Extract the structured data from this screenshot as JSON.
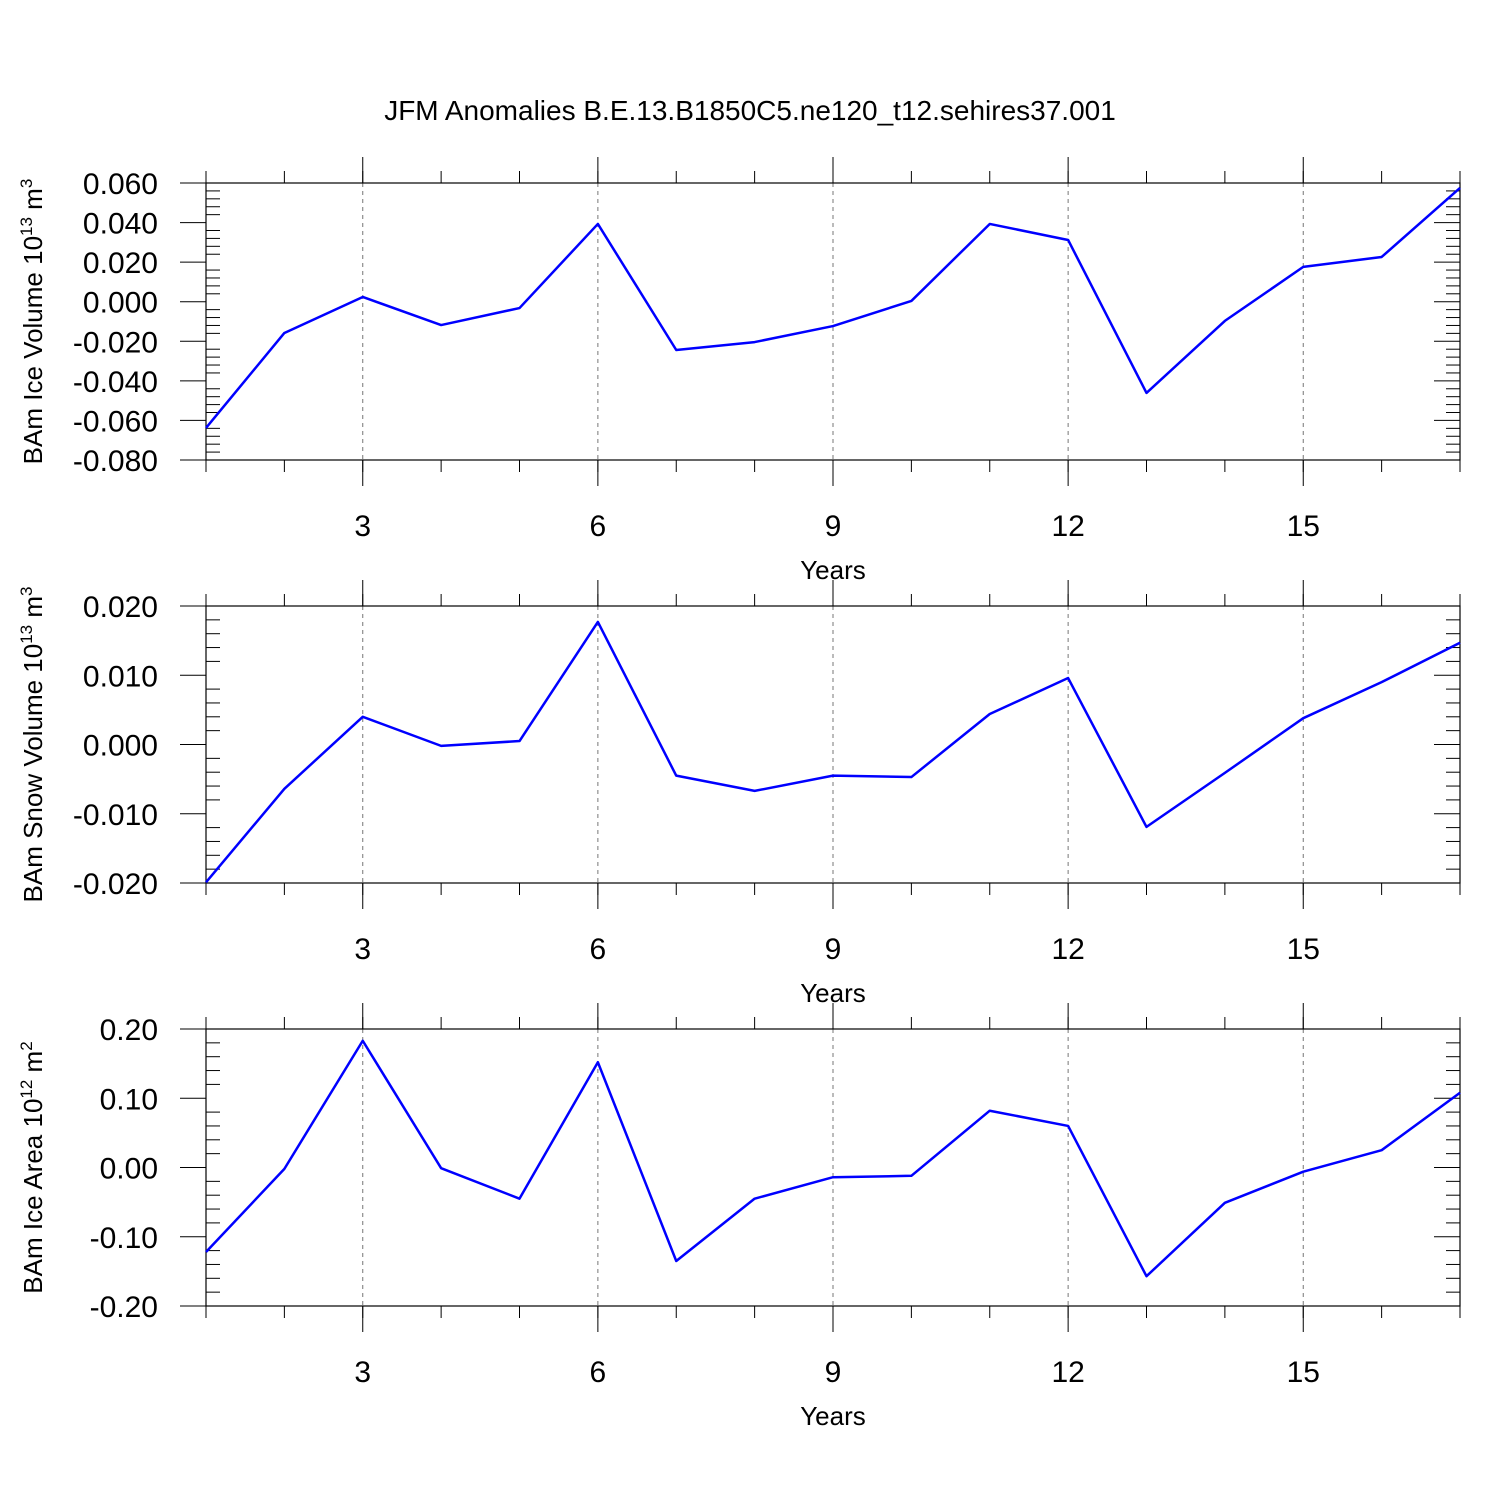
{
  "chart_data": [
    {
      "type": "line",
      "title": "JFM Anomalies B.E.13.B1850C5.ne120_t12.sehires37.001",
      "ylabel": {
        "text": "BAm Ice Volume 10",
        "exp": "13",
        "unit": " m",
        "unit_exp": "3"
      },
      "xlabel": "Years",
      "color": "#0000ff",
      "grid": true,
      "x": [
        1,
        2,
        3,
        4,
        5,
        6,
        7,
        8,
        9,
        10,
        11,
        12,
        13,
        14,
        15,
        16,
        17
      ],
      "values": [
        -0.0638,
        -0.0158,
        0.0024,
        -0.0118,
        -0.0032,
        0.0393,
        -0.0244,
        -0.0204,
        -0.0123,
        0.0004,
        0.0393,
        0.0312,
        -0.0461,
        -0.0097,
        0.0176,
        0.0226,
        0.0575
      ],
      "xlim": [
        1,
        17
      ],
      "xticks": [
        3,
        6,
        9,
        12,
        15
      ],
      "ylim": [
        -0.08,
        0.06
      ],
      "yticks": [
        {
          "value": -0.08,
          "label": "-0.080"
        },
        {
          "value": -0.06,
          "label": "-0.060"
        },
        {
          "value": -0.04,
          "label": "-0.040"
        },
        {
          "value": -0.02,
          "label": "-0.020"
        },
        {
          "value": 0,
          "label": "0.000"
        },
        {
          "value": 0.02,
          "label": "0.020"
        },
        {
          "value": 0.04,
          "label": "0.040"
        },
        {
          "value": 0.06,
          "label": "0.060"
        }
      ]
    },
    {
      "type": "line",
      "ylabel": {
        "text": "BAm Snow Volume 10",
        "exp": "13",
        "unit": " m",
        "unit_exp": "3"
      },
      "xlabel": "Years",
      "color": "#0000ff",
      "grid": true,
      "x": [
        1,
        2,
        3,
        4,
        5,
        6,
        7,
        8,
        9,
        10,
        11,
        12,
        13,
        14,
        15,
        16,
        17
      ],
      "values": [
        -0.0199,
        -0.0064,
        0.004,
        -0.0002,
        0.0005,
        0.0177,
        -0.0045,
        -0.0067,
        -0.0045,
        -0.0047,
        0.0044,
        0.0096,
        -0.0119,
        -0.0041,
        0.0038,
        0.009,
        0.0147
      ],
      "xlim": [
        1,
        17
      ],
      "xticks": [
        3,
        6,
        9,
        12,
        15
      ],
      "ylim": [
        -0.02,
        0.02
      ],
      "yticks": [
        {
          "value": -0.02,
          "label": "-0.020"
        },
        {
          "value": -0.01,
          "label": "-0.010"
        },
        {
          "value": 0,
          "label": "0.000"
        },
        {
          "value": 0.01,
          "label": "0.010"
        },
        {
          "value": 0.02,
          "label": "0.020"
        }
      ]
    },
    {
      "type": "line",
      "ylabel": {
        "text": "BAm Ice Area 10",
        "exp": "12",
        "unit": " m",
        "unit_exp": "2"
      },
      "xlabel": "Years",
      "color": "#0000ff",
      "grid": true,
      "x": [
        1,
        2,
        3,
        4,
        5,
        6,
        7,
        8,
        9,
        10,
        11,
        12,
        13,
        14,
        15,
        16,
        17
      ],
      "values": [
        -0.122,
        -0.002,
        0.183,
        -0.001,
        -0.045,
        0.152,
        -0.135,
        -0.045,
        -0.014,
        -0.012,
        0.082,
        0.06,
        -0.157,
        -0.051,
        -0.006,
        0.025,
        0.108
      ],
      "xlim": [
        1,
        17
      ],
      "xticks": [
        3,
        6,
        9,
        12,
        15
      ],
      "ylim": [
        -0.2,
        0.2
      ],
      "yticks": [
        {
          "value": -0.2,
          "label": "-0.20"
        },
        {
          "value": -0.1,
          "label": "-0.10"
        },
        {
          "value": 0,
          "label": "0.00"
        },
        {
          "value": 0.1,
          "label": "0.10"
        },
        {
          "value": 0.2,
          "label": "0.20"
        }
      ]
    }
  ]
}
